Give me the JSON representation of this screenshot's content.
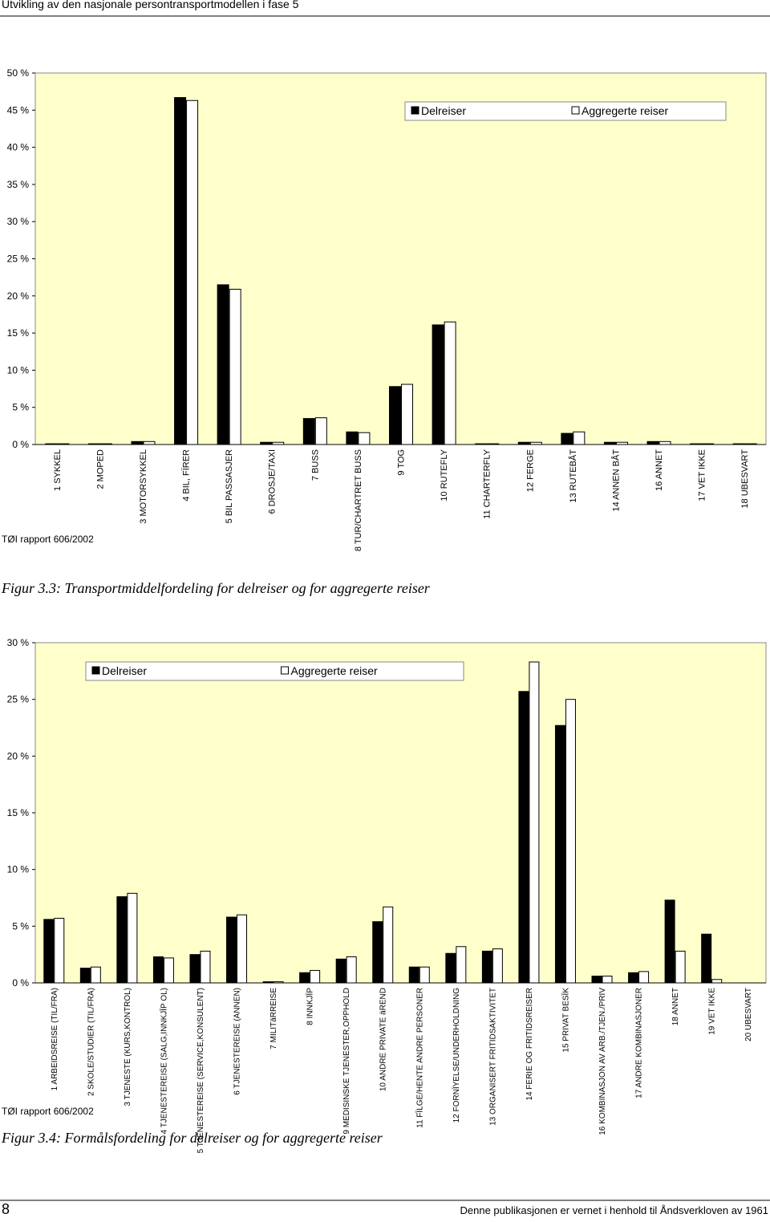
{
  "header": {
    "title": "Utvikling av den nasjonale persontransportmodellen i fase 5"
  },
  "chart_data": [
    {
      "type": "bar",
      "legend": "top-right",
      "grid": false,
      "background": "#ffffcc",
      "categories": [
        "1 SYKKEL",
        "2 MOPED",
        "3 MOTORSYKKEL",
        "4 BIL, FÏRER",
        "5 BIL PASSASJER",
        "6 DROSJE/TAXI",
        "7 BUSS",
        "8 TUR/CHARTRET BUSS",
        "9 TOG",
        "10 RUTEFLY",
        "11 CHARTERFLY",
        "12 FERGE",
        "13 RUTEBÅT",
        "14 ANNEN BÅT",
        "16 ANNET",
        "17 VET IKKE",
        "18 UBESVART"
      ],
      "series": [
        {
          "name": "Delreiser",
          "color": "#000000",
          "values": [
            0.1,
            0.1,
            0.4,
            46.7,
            21.5,
            0.3,
            3.5,
            1.7,
            7.8,
            16.1,
            0.1,
            0.3,
            1.5,
            0.3,
            0.4,
            0.1,
            0.1
          ]
        },
        {
          "name": "Aggregerte reiser",
          "color": "#ffffff",
          "values": [
            0.1,
            0.1,
            0.4,
            46.3,
            20.9,
            0.3,
            3.6,
            1.6,
            8.1,
            16.5,
            0.1,
            0.3,
            1.7,
            0.3,
            0.4,
            0.1,
            0.1
          ]
        }
      ],
      "ylim": [
        0,
        50
      ],
      "yticks": [
        {
          "value": 0,
          "label": "0 %"
        },
        {
          "value": 5,
          "label": "5 %"
        },
        {
          "value": 10,
          "label": "10 %"
        },
        {
          "value": 15,
          "label": "15 %"
        },
        {
          "value": 20,
          "label": "20 %"
        },
        {
          "value": 25,
          "label": "25 %"
        },
        {
          "value": 30,
          "label": "30 %"
        },
        {
          "value": 35,
          "label": "35 %"
        },
        {
          "value": 40,
          "label": "40 %"
        },
        {
          "value": 45,
          "label": "45 %"
        },
        {
          "value": 50,
          "label": "50 %"
        }
      ],
      "source": "TØI rapport 606/2002",
      "caption": "Figur 3.3: Transportmiddelfordeling for delreiser og for aggregerte reiser"
    },
    {
      "type": "bar",
      "legend": "top-left",
      "grid": false,
      "background": "#ffffcc",
      "categories": [
        "1 ARBEIDSREISE (TIL/FRA)",
        "2 SKOLE/STUDIER (TIL/FRA)",
        "3 TJENESTE (KURS,KONTROL)",
        "4 TJENESTEREISE (SALG,INNKJÏP OL)",
        "5 TJENESTEREISE (SERVICE,KONSULENT)",
        "6 TJENESTEREISE (ANNEN)",
        "7 MILITäRREISE",
        "8 INNKJÏP",
        "9 MEDISINSKE TJENESTER,OPPHOLD",
        "10 ANDRE PRIVATE äREND",
        "11 FÏLGE/HENTE ANDRE PERSONER",
        "12 FORNÏYELSE/UNDERHOLDNING",
        "13 ORGANISERT FRITIDSAKTIVITET",
        "14 FERIE OG FRITIDSREISER",
        "15 PRIVAT BESÏK",
        "16 KOMBINASJON AV ARB./TJEN./PRIV",
        "17 ANDRE KOMBINASJONER",
        "18 ANNET",
        "19 VET IKKE",
        "20 UBESVART"
      ],
      "series": [
        {
          "name": "Delreiser",
          "color": "#000000",
          "values": [
            5.6,
            1.3,
            7.6,
            2.3,
            2.5,
            5.8,
            0.1,
            0.9,
            2.1,
            5.4,
            1.4,
            2.6,
            2.8,
            25.7,
            22.7,
            0.6,
            0.9,
            7.3,
            4.3,
            0
          ]
        },
        {
          "name": "Aggregerte reiser",
          "color": "#ffffff",
          "values": [
            5.7,
            1.4,
            7.9,
            2.2,
            2.8,
            6.0,
            0.1,
            1.1,
            2.3,
            6.7,
            1.4,
            3.2,
            3.0,
            28.3,
            25.0,
            0.6,
            1.0,
            2.8,
            0.3,
            0
          ]
        }
      ],
      "ylim": [
        0,
        30
      ],
      "yticks": [
        {
          "value": 0,
          "label": "0 %"
        },
        {
          "value": 5,
          "label": "5 %"
        },
        {
          "value": 10,
          "label": "10 %"
        },
        {
          "value": 15,
          "label": "15 %"
        },
        {
          "value": 20,
          "label": "20 %"
        },
        {
          "value": 25,
          "label": "25 %"
        },
        {
          "value": 30,
          "label": "30 %"
        }
      ],
      "source": "TØI rapport 606/2002",
      "caption": "Figur 3.4: Formålsfordeling for delreiser og for aggregerte reiser"
    }
  ],
  "footer": {
    "page_number": "8",
    "notice": "Denne publikasjonen er vernet i henhold til Åndsverkloven av 1961"
  }
}
